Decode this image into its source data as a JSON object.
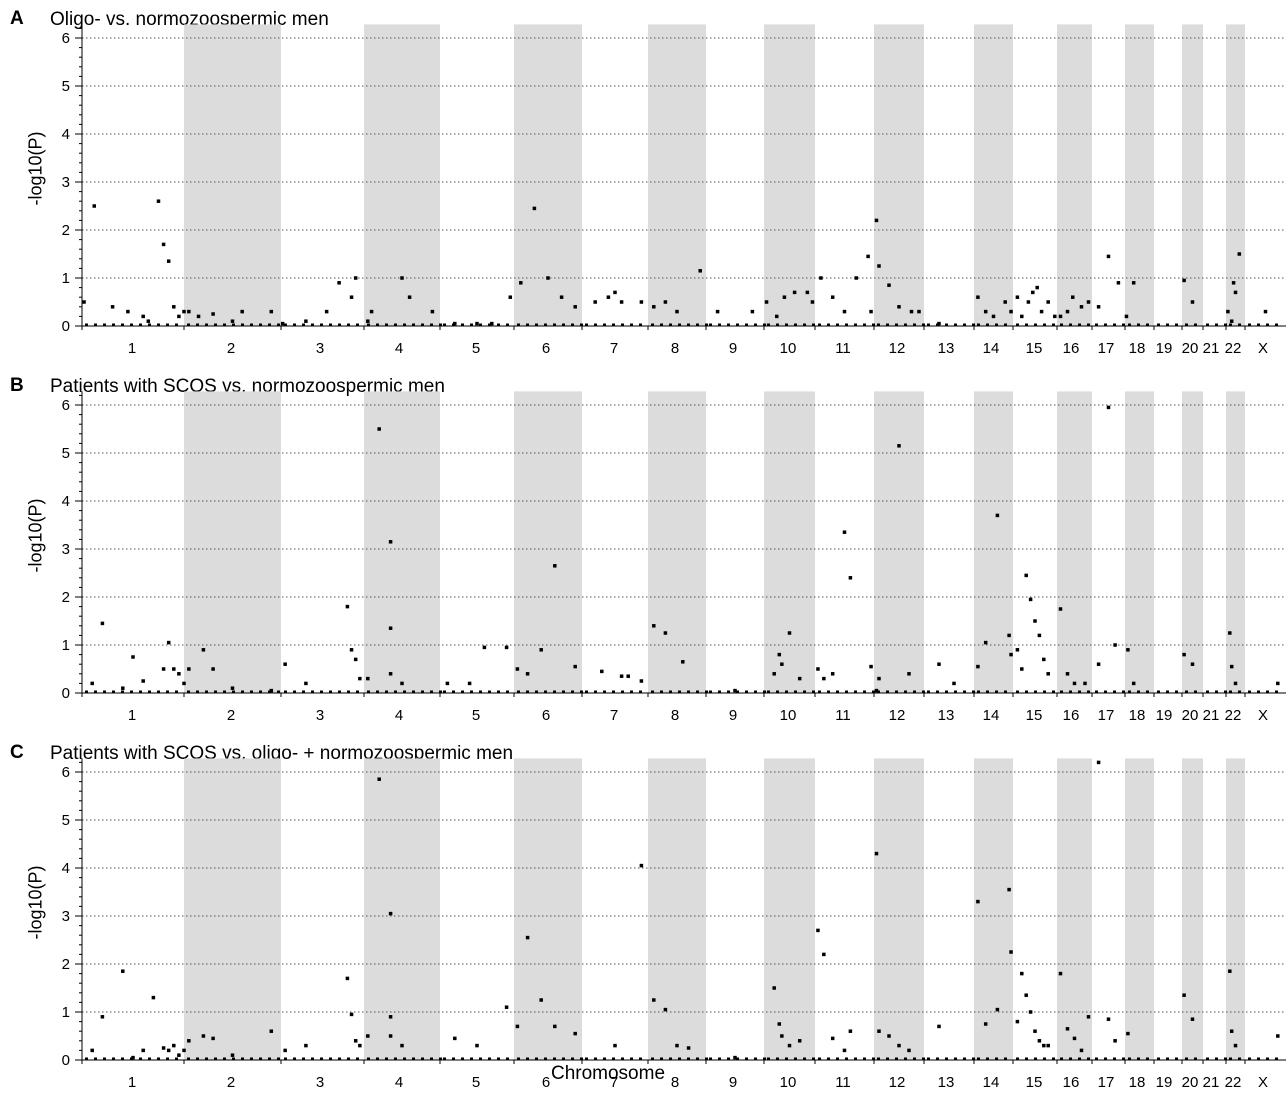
{
  "xlabel": "Chromosome",
  "ylabel": "-log10(P)",
  "colors": {
    "band": "#dcdcdc",
    "point": "#000000",
    "grid": "#555555"
  },
  "chart_data": [
    {
      "type": "scatter",
      "panel": "A",
      "title": "Oligo- vs. normozoospermic men",
      "ylabel": "-log10(P)",
      "ylim": [
        0,
        6.2
      ],
      "yticks": [
        0,
        1,
        2,
        3,
        4,
        5,
        6
      ],
      "grid": true,
      "categories": [
        "1",
        "2",
        "3",
        "4",
        "5",
        "6",
        "7",
        "8",
        "9",
        "10",
        "11",
        "12",
        "13",
        "14",
        "15",
        "16",
        "17",
        "18",
        "19",
        "20",
        "21",
        "22",
        "X"
      ],
      "x_chromosome": [
        "1",
        "1",
        "1",
        "1",
        "1",
        "1",
        "1",
        "1",
        "1",
        "1",
        "1",
        "1",
        "2",
        "2",
        "2",
        "2",
        "2",
        "2",
        "3",
        "3",
        "3",
        "3",
        "3",
        "3",
        "4",
        "4",
        "4",
        "4",
        "4",
        "5",
        "5",
        "5",
        "5",
        "6",
        "6",
        "6",
        "6",
        "6",
        "7",
        "7",
        "7",
        "7",
        "7",
        "8",
        "8",
        "8",
        "8",
        "9",
        "9",
        "10",
        "10",
        "10",
        "10",
        "10",
        "10",
        "11",
        "11",
        "11",
        "11",
        "11",
        "11",
        "12",
        "12",
        "12",
        "12",
        "12",
        "12",
        "13",
        "14",
        "14",
        "14",
        "14",
        "14",
        "15",
        "15",
        "15",
        "15",
        "15",
        "15",
        "15",
        "15",
        "16",
        "16",
        "16",
        "16",
        "16",
        "17",
        "17",
        "17",
        "18",
        "18",
        "20",
        "20",
        "22",
        "22",
        "22",
        "22",
        "22",
        "X"
      ],
      "x_position": [
        0.02,
        0.12,
        0.3,
        0.45,
        0.6,
        0.75,
        0.8,
        0.85,
        0.9,
        0.95,
        1.0,
        0.65,
        0.05,
        0.15,
        0.3,
        0.5,
        0.6,
        0.9,
        0.02,
        0.3,
        0.55,
        0.7,
        0.85,
        0.9,
        0.05,
        0.1,
        0.5,
        0.6,
        0.9,
        0.2,
        0.5,
        0.7,
        0.95,
        0.1,
        0.3,
        0.5,
        0.7,
        0.9,
        0.2,
        0.4,
        0.5,
        0.6,
        0.9,
        0.1,
        0.3,
        0.5,
        0.9,
        0.2,
        0.8,
        0.05,
        0.25,
        0.4,
        0.6,
        0.85,
        0.95,
        0.1,
        0.3,
        0.5,
        0.7,
        0.9,
        0.95,
        0.05,
        0.1,
        0.3,
        0.5,
        0.75,
        0.9,
        0.3,
        0.1,
        0.3,
        0.5,
        0.8,
        0.95,
        0.1,
        0.2,
        0.35,
        0.45,
        0.55,
        0.65,
        0.8,
        0.95,
        0.1,
        0.3,
        0.45,
        0.7,
        0.9,
        0.2,
        0.5,
        0.8,
        0.05,
        0.3,
        0.1,
        0.5,
        0.1,
        0.3,
        0.4,
        0.5,
        0.7,
        0.5
      ],
      "y": [
        0.5,
        2.5,
        0.4,
        0.3,
        0.2,
        2.6,
        1.7,
        1.35,
        0.4,
        0.2,
        0.3,
        0.1,
        0.3,
        0.2,
        0.25,
        0.1,
        0.3,
        0.3,
        0.05,
        0.1,
        0.3,
        0.9,
        0.6,
        1.0,
        0.1,
        0.3,
        1.0,
        0.6,
        0.3,
        0.05,
        0.05,
        0.05,
        0.6,
        0.9,
        2.45,
        1.0,
        0.6,
        0.4,
        0.5,
        0.6,
        0.7,
        0.5,
        0.5,
        0.4,
        0.5,
        0.3,
        1.15,
        0.3,
        0.3,
        0.5,
        0.2,
        0.6,
        0.7,
        0.7,
        0.5,
        1.0,
        0.6,
        0.3,
        1.0,
        1.45,
        0.3,
        2.2,
        1.25,
        0.85,
        0.4,
        0.3,
        0.3,
        0.05,
        0.6,
        0.3,
        0.2,
        0.5,
        0.3,
        0.6,
        0.2,
        0.5,
        0.7,
        0.8,
        0.3,
        0.5,
        0.2,
        0.2,
        0.3,
        0.6,
        0.4,
        0.5,
        0.4,
        1.45,
        0.9,
        0.2,
        0.9,
        0.95,
        0.5,
        0.3,
        0.1,
        0.9,
        0.7,
        1.5,
        0.3
      ]
    },
    {
      "type": "scatter",
      "panel": "B",
      "title": "Patients with SCOS vs. normozoospermic men",
      "ylabel": "-log10(P)",
      "ylim": [
        0,
        6.2
      ],
      "yticks": [
        0,
        1,
        2,
        3,
        4,
        5,
        6
      ],
      "grid": true,
      "categories": [
        "1",
        "2",
        "3",
        "4",
        "5",
        "6",
        "7",
        "8",
        "9",
        "10",
        "11",
        "12",
        "13",
        "14",
        "15",
        "16",
        "17",
        "18",
        "19",
        "20",
        "21",
        "22",
        "X"
      ],
      "x_chromosome": [
        "1",
        "1",
        "1",
        "1",
        "1",
        "1",
        "1",
        "1",
        "1",
        "1",
        "2",
        "2",
        "2",
        "2",
        "2",
        "3",
        "3",
        "3",
        "3",
        "3",
        "3",
        "4",
        "4",
        "4",
        "4",
        "4",
        "4",
        "5",
        "5",
        "5",
        "5",
        "6",
        "6",
        "6",
        "6",
        "6",
        "7",
        "7",
        "7",
        "7",
        "8",
        "8",
        "8",
        "9",
        "10",
        "10",
        "10",
        "10",
        "10",
        "11",
        "11",
        "11",
        "11",
        "11",
        "11",
        "12",
        "12",
        "12",
        "12",
        "13",
        "13",
        "14",
        "14",
        "14",
        "14",
        "14",
        "15",
        "15",
        "15",
        "15",
        "15",
        "15",
        "15",
        "15",
        "16",
        "16",
        "16",
        "16",
        "17",
        "17",
        "17",
        "18",
        "18",
        "20",
        "20",
        "22",
        "22",
        "22",
        "X"
      ],
      "x_position": [
        0.1,
        0.2,
        0.5,
        0.6,
        0.8,
        0.85,
        0.9,
        0.95,
        1.0,
        0.4,
        0.05,
        0.2,
        0.3,
        0.5,
        0.9,
        0.05,
        0.3,
        0.8,
        0.85,
        0.9,
        0.95,
        0.05,
        0.2,
        0.35,
        0.35,
        0.35,
        0.5,
        0.9,
        0.1,
        0.4,
        0.6,
        0.05,
        0.2,
        0.4,
        0.6,
        0.9,
        0.3,
        0.6,
        0.7,
        0.9,
        0.1,
        0.3,
        0.6,
        0.5,
        0.2,
        0.3,
        0.35,
        0.5,
        0.7,
        0.05,
        0.15,
        0.3,
        0.5,
        0.6,
        0.95,
        0.05,
        0.1,
        0.5,
        0.7,
        0.3,
        0.6,
        0.1,
        0.3,
        0.6,
        0.9,
        0.95,
        0.1,
        0.2,
        0.3,
        0.4,
        0.5,
        0.6,
        0.7,
        0.8,
        0.1,
        0.3,
        0.5,
        0.8,
        0.2,
        0.5,
        0.7,
        0.1,
        0.3,
        0.1,
        0.5,
        0.2,
        0.3,
        0.5,
        0.8
      ],
      "y": [
        0.2,
        1.45,
        0.75,
        0.25,
        0.5,
        1.05,
        0.5,
        0.4,
        0.2,
        0.1,
        0.5,
        0.9,
        0.5,
        0.1,
        0.05,
        0.6,
        0.2,
        1.8,
        0.9,
        0.7,
        0.3,
        0.3,
        5.5,
        3.15,
        1.35,
        0.4,
        0.2,
        0.95,
        0.2,
        0.2,
        0.95,
        0.5,
        0.4,
        0.9,
        2.65,
        0.55,
        0.45,
        0.35,
        0.35,
        0.25,
        1.4,
        1.25,
        0.65,
        0.05,
        0.4,
        0.8,
        0.6,
        1.25,
        0.3,
        0.5,
        0.3,
        0.4,
        3.35,
        2.4,
        0.55,
        0.05,
        0.3,
        5.15,
        0.4,
        0.6,
        0.2,
        0.55,
        1.05,
        3.7,
        1.2,
        0.8,
        0.9,
        0.5,
        2.45,
        1.95,
        1.5,
        1.2,
        0.7,
        0.4,
        1.75,
        0.4,
        0.2,
        0.2,
        0.6,
        5.95,
        1.0,
        0.9,
        0.2,
        0.8,
        0.6,
        1.25,
        0.55,
        0.2,
        0.2
      ]
    },
    {
      "type": "scatter",
      "panel": "C",
      "title": "Patients with SCOS vs. oligo- + normozoospermic men",
      "ylabel": "-log10(P)",
      "ylim": [
        0,
        6.2
      ],
      "yticks": [
        0,
        1,
        2,
        3,
        4,
        5,
        6
      ],
      "grid": true,
      "categories": [
        "1",
        "2",
        "3",
        "4",
        "5",
        "6",
        "7",
        "8",
        "9",
        "10",
        "11",
        "12",
        "13",
        "14",
        "15",
        "16",
        "17",
        "18",
        "19",
        "20",
        "21",
        "22",
        "X"
      ],
      "x_chromosome": [
        "1",
        "1",
        "1",
        "1",
        "1",
        "1",
        "1",
        "1",
        "1",
        "1",
        "1",
        "2",
        "2",
        "2",
        "2",
        "2",
        "3",
        "3",
        "3",
        "3",
        "3",
        "3",
        "4",
        "4",
        "4",
        "4",
        "4",
        "4",
        "5",
        "5",
        "5",
        "6",
        "6",
        "6",
        "6",
        "6",
        "7",
        "7",
        "8",
        "8",
        "8",
        "8",
        "9",
        "10",
        "10",
        "10",
        "10",
        "10",
        "11",
        "11",
        "11",
        "11",
        "11",
        "12",
        "12",
        "12",
        "12",
        "12",
        "13",
        "14",
        "14",
        "14",
        "14",
        "14",
        "15",
        "15",
        "15",
        "15",
        "15",
        "15",
        "15",
        "15",
        "16",
        "16",
        "16",
        "16",
        "16",
        "17",
        "17",
        "17",
        "18",
        "20",
        "20",
        "22",
        "22",
        "22",
        "X"
      ],
      "x_position": [
        0.1,
        0.2,
        0.4,
        0.5,
        0.6,
        0.7,
        0.8,
        0.85,
        0.9,
        0.95,
        1.0,
        0.05,
        0.2,
        0.3,
        0.5,
        0.9,
        0.05,
        0.3,
        0.8,
        0.85,
        0.9,
        0.95,
        0.05,
        0.2,
        0.35,
        0.35,
        0.35,
        0.5,
        0.9,
        0.2,
        0.5,
        0.05,
        0.2,
        0.4,
        0.6,
        0.9,
        0.5,
        0.9,
        0.1,
        0.3,
        0.5,
        0.7,
        0.5,
        0.2,
        0.3,
        0.35,
        0.5,
        0.7,
        0.05,
        0.15,
        0.3,
        0.5,
        0.6,
        0.05,
        0.1,
        0.3,
        0.5,
        0.7,
        0.3,
        0.1,
        0.3,
        0.6,
        0.9,
        0.95,
        0.1,
        0.2,
        0.3,
        0.4,
        0.5,
        0.6,
        0.7,
        0.8,
        0.1,
        0.3,
        0.5,
        0.7,
        0.9,
        0.2,
        0.5,
        0.7,
        0.1,
        0.1,
        0.5,
        0.2,
        0.3,
        0.5,
        0.8
      ],
      "y": [
        0.2,
        0.9,
        1.85,
        0.05,
        0.2,
        1.3,
        0.25,
        0.2,
        0.3,
        0.1,
        0.2,
        0.4,
        0.5,
        0.45,
        0.1,
        0.6,
        0.2,
        0.3,
        1.7,
        0.95,
        0.4,
        0.3,
        0.5,
        5.85,
        3.05,
        0.5,
        0.9,
        0.3,
        1.1,
        0.45,
        0.3,
        0.7,
        2.55,
        1.25,
        0.7,
        0.55,
        0.3,
        4.05,
        1.25,
        1.05,
        0.3,
        0.25,
        0.05,
        1.5,
        0.75,
        0.5,
        0.3,
        0.4,
        2.7,
        2.2,
        0.45,
        0.2,
        0.6,
        4.3,
        0.6,
        0.5,
        0.3,
        0.2,
        0.7,
        3.3,
        0.75,
        1.05,
        3.55,
        2.25,
        0.8,
        1.8,
        1.35,
        1.0,
        0.6,
        0.4,
        0.3,
        0.3,
        1.8,
        0.65,
        0.45,
        0.2,
        0.9,
        6.2,
        0.85,
        0.4,
        0.55,
        1.35,
        0.85,
        1.85,
        0.6,
        0.3,
        0.5
      ]
    }
  ],
  "panels": [
    {
      "letter": "A",
      "title": "Oligo- vs. normozoospermic men"
    },
    {
      "letter": "B",
      "title": "Patients with SCOS vs. normozoospermic men"
    },
    {
      "letter": "C",
      "title": "Patients with SCOS vs. oligo- + normozoospermic men"
    }
  ],
  "xtick_labels": [
    "1",
    "2",
    "3",
    "4",
    "5",
    "6",
    "7",
    "8",
    "9",
    "10",
    "11",
    "12",
    "13",
    "14",
    "15",
    "16",
    "17",
    "18",
    "19",
    "20",
    "21",
    "22",
    "X"
  ],
  "ytick_labels": [
    "0",
    "1",
    "2",
    "3",
    "4",
    "5",
    "6"
  ]
}
